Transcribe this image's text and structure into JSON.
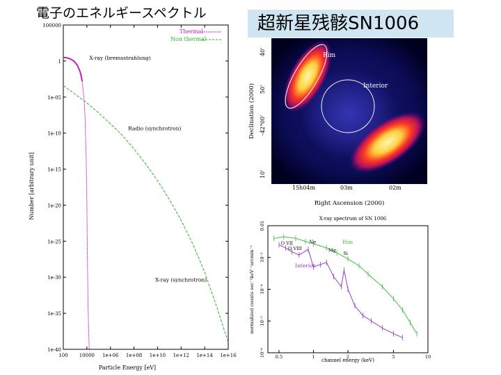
{
  "slide": {
    "title_left": "電子のエネルギースペクトル",
    "title_right": "超新星残骸SN1006"
  },
  "chart_data": [
    {
      "type": "line",
      "xscale": "log",
      "yscale": "log",
      "xlabel": "Particle Energy [eV]",
      "ylabel": "Number [arbitrary unit]",
      "xlim": [
        100,
        1e+16
      ],
      "ylim": [
        1e-40,
        100000.0
      ],
      "x_tick_labels": [
        "100",
        "10000",
        "1e+06",
        "1e+08",
        "1e+10",
        "1e+12",
        "1e+14",
        "1e+16"
      ],
      "x_tick_exps": [
        2,
        4,
        6,
        8,
        10,
        12,
        14,
        16
      ],
      "y_tick_labels": [
        "100000",
        "1",
        "1e-05",
        "1e-10",
        "1e-15",
        "1e-20",
        "1e-25",
        "1e-30",
        "1e-35",
        "1e-40"
      ],
      "y_tick_exps": [
        5,
        0,
        -5,
        -10,
        -15,
        -20,
        -25,
        -30,
        -35,
        -40
      ],
      "legend": [
        {
          "name": "Thermal",
          "color": "#c020c0"
        },
        {
          "name": "Non thermal",
          "color": "#30b030"
        }
      ],
      "series": [
        {
          "name": "Thermal",
          "color": "#c020c0",
          "log10_x": [
            2.0,
            2.3,
            2.6,
            2.9,
            3.2,
            3.45,
            3.6,
            3.75,
            3.85,
            3.95,
            4.0,
            4.05,
            4.1,
            4.2
          ],
          "log10_y": [
            0.5,
            0.45,
            0.3,
            0.0,
            -0.6,
            -1.6,
            -2.8,
            -5.0,
            -8.0,
            -14.0,
            -20.0,
            -28.0,
            -34.0,
            -40.0
          ]
        },
        {
          "name": "Non thermal",
          "color": "#30b030",
          "log10_x": [
            2.0,
            3.0,
            4.0,
            5.0,
            6.0,
            7.0,
            8.0,
            9.0,
            10.0,
            11.0,
            12.0,
            13.0,
            14.0,
            15.0,
            16.0
          ],
          "log10_y": [
            -3.4,
            -4.6,
            -5.8,
            -7.2,
            -8.7,
            -10.3,
            -12.2,
            -14.3,
            -16.6,
            -19.2,
            -22.1,
            -25.4,
            -29.3,
            -34.0,
            -39.0
          ]
        }
      ],
      "annotations": [
        {
          "text": "X-ray (bremsstrahlung)",
          "log10_x": 4.2,
          "log10_y": 0.2
        },
        {
          "text": "Radio (synchrotron)",
          "log10_x": 7.5,
          "log10_y": -9.6
        },
        {
          "text": "X-ray (synchrotron)",
          "log10_x": 9.8,
          "log10_y": -30.6
        }
      ]
    },
    {
      "type": "heatmap",
      "xlabel": "Right Ascension (2000)",
      "ylabel": "Declination (2000)",
      "x_tick_labels": [
        "15h04m",
        "03m",
        "02m"
      ],
      "y_tick_labels": [
        "40'",
        "50'",
        "-42°00'",
        "10'"
      ],
      "regions": [
        {
          "label": "Rim"
        },
        {
          "label": "Interior"
        }
      ]
    },
    {
      "type": "line",
      "title": "X-ray spectrum of SN 1006",
      "xscale": "log",
      "yscale": "log",
      "xlabel": "channel energy (keV)",
      "ylabel": "normalized counts sec⁻¹keV⁻¹arcmin⁻²",
      "xlim": [
        0.4,
        10
      ],
      "ylim": [
        1e-06,
        0.01
      ],
      "x_ticks": [
        0.5,
        1,
        2,
        5,
        10
      ],
      "x_tick_labels": [
        "0.5",
        "1",
        "2",
        "5",
        "10"
      ],
      "y_ticks": [
        0.01,
        0.001,
        0.0001,
        1e-05,
        1e-06
      ],
      "y_tick_labels": [
        "0.01",
        "10⁻³",
        "10⁻⁴",
        "10⁻⁵",
        "10⁻⁶"
      ],
      "series": [
        {
          "name": "Rim",
          "color": "#40c040",
          "x": [
            0.45,
            0.55,
            0.7,
            0.85,
            1.0,
            1.3,
            1.6,
            2.0,
            2.5,
            3.0,
            4.0,
            5.0,
            6.0,
            7.0,
            8.0
          ],
          "y": [
            0.004,
            0.0045,
            0.004,
            0.0032,
            0.0027,
            0.002,
            0.0014,
            0.0009,
            0.00055,
            0.0003,
            0.00012,
            5e-05,
            2.2e-05,
            9e-06,
            4e-06
          ]
        },
        {
          "name": "Interior",
          "color": "#9040d0",
          "x": [
            0.5,
            0.57,
            0.65,
            0.75,
            0.9,
            1.0,
            1.15,
            1.3,
            1.5,
            1.75,
            1.85,
            2.0,
            2.3,
            2.7,
            3.2,
            4.0,
            5.0,
            6.0
          ],
          "y": [
            0.0025,
            0.002,
            0.0015,
            0.0012,
            0.0018,
            0.0005,
            0.0006,
            0.0007,
            0.00025,
            0.00012,
            0.0004,
            0.0001,
            3e-05,
            1.5e-05,
            1e-05,
            6e-06,
            4e-06,
            3e-06
          ]
        }
      ],
      "annotations": [
        {
          "text": "O VII",
          "x": 0.52,
          "y": 0.0025
        },
        {
          "text": "O VIII",
          "x": 0.6,
          "y": 0.0017
        },
        {
          "text": "Ne",
          "x": 0.92,
          "y": 0.0028
        },
        {
          "text": "Mg",
          "x": 1.35,
          "y": 0.0015
        },
        {
          "text": "Si",
          "x": 1.82,
          "y": 0.0012
        }
      ]
    }
  ]
}
